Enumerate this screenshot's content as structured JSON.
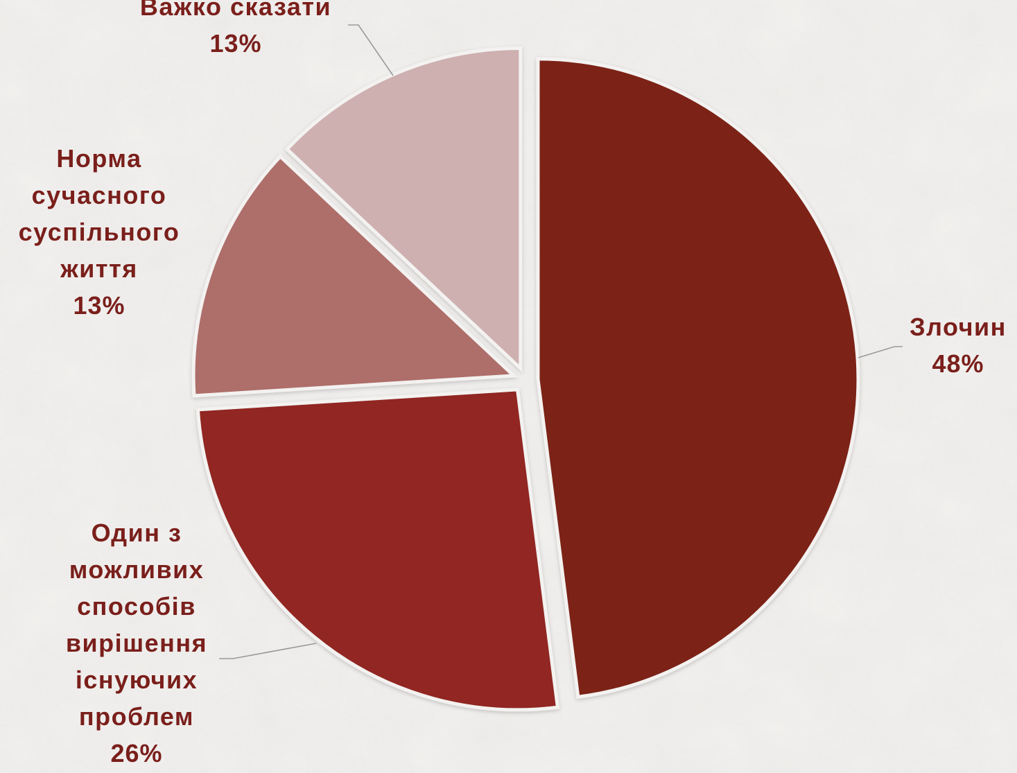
{
  "chart_data": {
    "type": "pie",
    "title": "",
    "label_color": "#7a1f1b",
    "leader_color": "#999999",
    "slices": [
      {
        "name": "Злочин",
        "value": 48,
        "label": "48%",
        "color": "#7b2019"
      },
      {
        "name": "Один з можливих способів вирішення існуючих проблем",
        "value": 26,
        "label": "26%",
        "color": "#912820"
      },
      {
        "name": "Норма сучасного суспільного життя",
        "value": 13,
        "label": "13%",
        "color": "#ae6e6b"
      },
      {
        "name": "Важко сказати",
        "value": 13,
        "label": "13%",
        "color": "#ceb0b1"
      }
    ]
  }
}
